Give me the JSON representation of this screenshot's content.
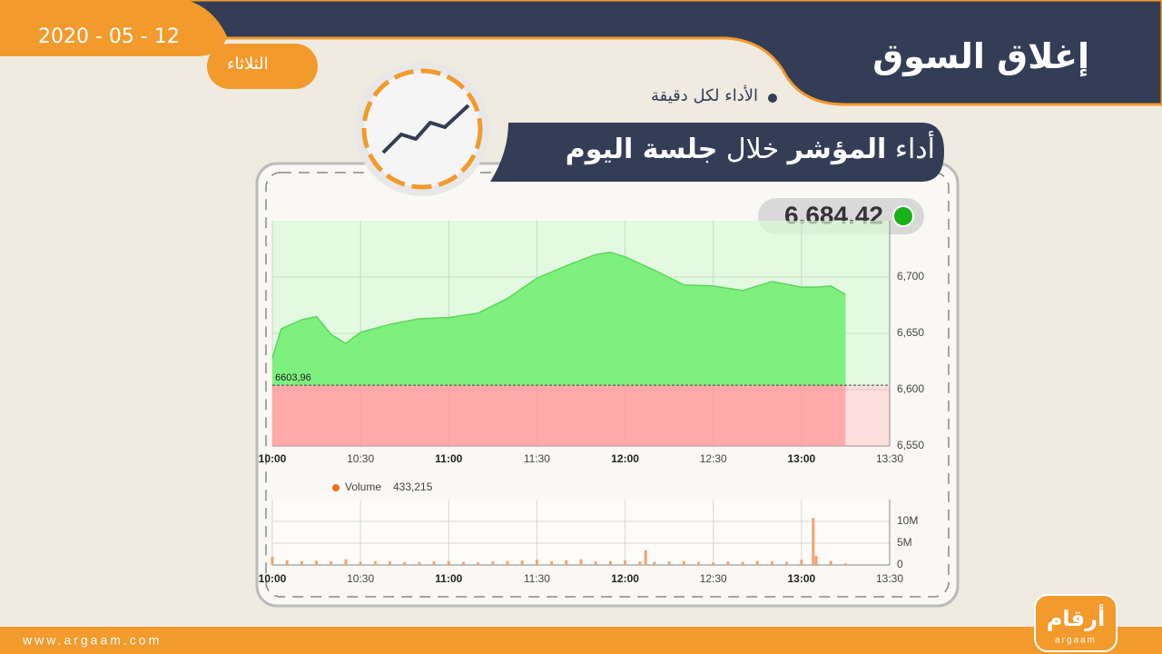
{
  "header": {
    "title": "إغلاق السوق",
    "date": "2020 - 05 - 12",
    "day": "الثلاثاء",
    "subtitle": "الأداء لكل دقيقة",
    "title_parts": [
      "أداء",
      "المؤشر",
      "خلال",
      "جلسة اليوم"
    ],
    "current_value": "6.684.42"
  },
  "chart_data": [
    {
      "type": "area",
      "color": "#7ef07e",
      "below_color": "#ff9c9c",
      "x": [
        0,
        3,
        10,
        15,
        20,
        25,
        30,
        40,
        50,
        60,
        70,
        80,
        90,
        100,
        110,
        115,
        120,
        130,
        140,
        150,
        160,
        170,
        180,
        185,
        190,
        195
      ],
      "values": [
        6628,
        6654,
        6662,
        6665,
        6649,
        6641,
        6651,
        6658,
        6663,
        6664,
        6668,
        6681,
        6699,
        6710,
        6720,
        6722,
        6718,
        6706,
        6693,
        6692,
        6688,
        6696,
        6691,
        6691,
        6692,
        6684.42
      ],
      "reference": {
        "value": 6603.96,
        "label": "6603,96"
      },
      "xlim": [
        0,
        210
      ],
      "xticks": [
        {
          "value": 0,
          "label": "10:00"
        },
        {
          "value": 30,
          "label": "10:30"
        },
        {
          "value": 60,
          "label": "11:00"
        },
        {
          "value": 90,
          "label": "11:30"
        },
        {
          "value": 120,
          "label": "12:00"
        },
        {
          "value": 150,
          "label": "12:30"
        },
        {
          "value": 180,
          "label": "13:00"
        },
        {
          "value": 210,
          "label": "13:30"
        }
      ],
      "ylim": [
        6550,
        6750
      ],
      "yticks": [
        {
          "value": 6550,
          "label": "6,550"
        },
        {
          "value": 6600,
          "label": "6,600"
        },
        {
          "value": 6650,
          "label": "6,650"
        },
        {
          "value": 6700,
          "label": "6,700"
        }
      ],
      "grid": true
    },
    {
      "type": "bar",
      "color": "#f4a36c",
      "series": [
        {
          "name": "Volume",
          "legend_value": "433,215",
          "color": "#f07020",
          "x": [
            0,
            5,
            10,
            15,
            20,
            25,
            30,
            35,
            40,
            45,
            50,
            55,
            60,
            65,
            70,
            75,
            80,
            85,
            90,
            95,
            100,
            105,
            110,
            115,
            120,
            125,
            127,
            130,
            135,
            140,
            145,
            150,
            155,
            160,
            165,
            170,
            175,
            180,
            184,
            185,
            190,
            195
          ],
          "values": [
            1900000,
            1100000,
            900000,
            1000000,
            800000,
            1300000,
            700000,
            900000,
            800000,
            600000,
            700000,
            800000,
            900000,
            700000,
            600000,
            800000,
            900000,
            1000000,
            1200000,
            900000,
            1100000,
            1300000,
            800000,
            900000,
            1000000,
            800000,
            3400000,
            700000,
            800000,
            900000,
            700000,
            600000,
            800000,
            700000,
            900000,
            800000,
            700000,
            1200000,
            10800000,
            2100000,
            900000,
            400000
          ]
        }
      ],
      "xlim": [
        0,
        210
      ],
      "xticks": [
        {
          "value": 0,
          "label": "10:00"
        },
        {
          "value": 30,
          "label": "10:30"
        },
        {
          "value": 60,
          "label": "11:00"
        },
        {
          "value": 90,
          "label": "11:30"
        },
        {
          "value": 120,
          "label": "12:00"
        },
        {
          "value": 150,
          "label": "12:30"
        },
        {
          "value": 180,
          "label": "13:00"
        },
        {
          "value": 210,
          "label": "13:30"
        }
      ],
      "ylim": [
        0,
        15000000
      ],
      "yticks": [
        0,
        {
          "value": 5000000,
          "label": "5M"
        },
        {
          "value": 10000000,
          "label": "10M"
        }
      ],
      "grid": true
    }
  ],
  "footer": {
    "url": "www.argaam.com",
    "logo": "أرقام",
    "logo_latin": "argaam"
  }
}
